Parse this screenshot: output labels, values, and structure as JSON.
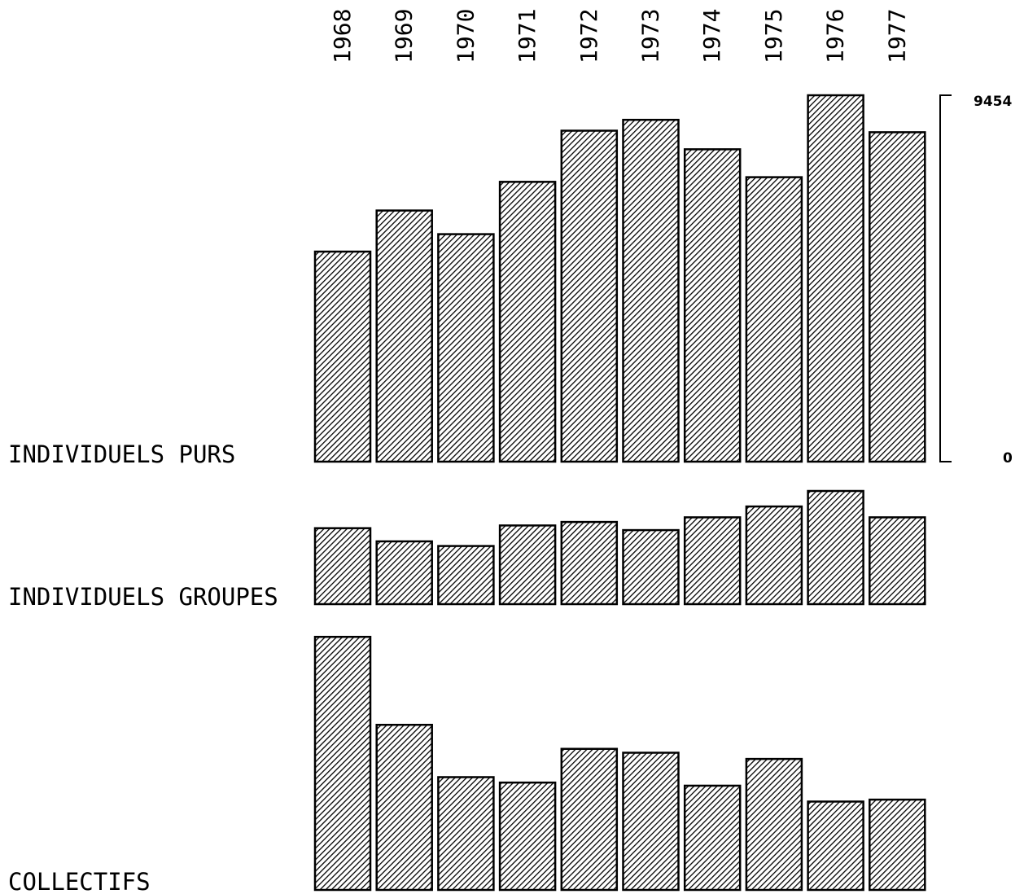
{
  "chart_data": {
    "type": "bar",
    "categories": [
      "1968",
      "1969",
      "1970",
      "1971",
      "1972",
      "1973",
      "1974",
      "1975",
      "1976",
      "1977"
    ],
    "series": [
      {
        "name": "INDIVIDUELS PURS",
        "values": [
          5420,
          6480,
          5870,
          7220,
          8540,
          8820,
          8060,
          7340,
          9454,
          8500
        ]
      },
      {
        "name": "INDIVIDUELS GROUPES",
        "values": [
          1960,
          1620,
          1500,
          2030,
          2120,
          1910,
          2240,
          2520,
          2920,
          2240
        ]
      },
      {
        "name": "COLLECTIFS",
        "values": [
          6530,
          4260,
          2910,
          2770,
          3640,
          3540,
          2690,
          3380,
          2280,
          2330
        ]
      }
    ],
    "scale": {
      "max_label": "9454",
      "min_label": "0"
    },
    "ylim": [
      0,
      9454
    ],
    "grid": false,
    "legend": "none"
  }
}
